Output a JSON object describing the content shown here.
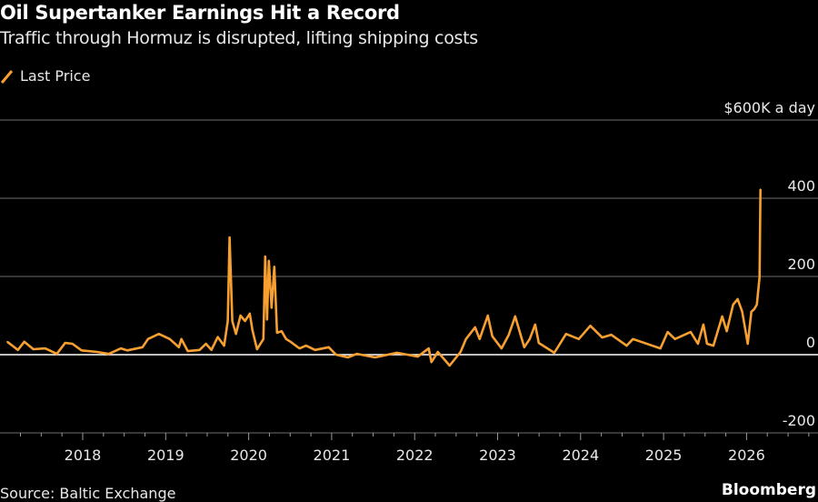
{
  "header": {
    "title": "Oil Supertanker Earnings Hit a Record",
    "subtitle": "Traffic through Hormuz is disrupted, lifting shipping costs"
  },
  "legend": {
    "label": "Last Price",
    "color": "#f7a031"
  },
  "footer": {
    "source": "Source: Baltic Exchange",
    "brand": "Bloomberg"
  },
  "chart_data": {
    "type": "line",
    "title": "Oil Supertanker Earnings Hit a Record",
    "ylabel": "$600K a day",
    "ylim": [
      -200,
      600
    ],
    "yticks": [
      {
        "value": 600,
        "label": "$600K a day"
      },
      {
        "value": 400,
        "label": "400"
      },
      {
        "value": 200,
        "label": "200"
      },
      {
        "value": 0,
        "label": "0"
      },
      {
        "value": -200,
        "label": "-200"
      }
    ],
    "xlim": [
      "2017-02-01",
      "2026-12-31"
    ],
    "xticks": [
      "2018",
      "2019",
      "2020",
      "2021",
      "2022",
      "2023",
      "2024",
      "2025",
      "2026"
    ],
    "grid": true,
    "legend_position": "top-left",
    "series": [
      {
        "name": "Last Price",
        "color": "#f7a031",
        "points": [
          [
            "2017-02-03",
            33
          ],
          [
            "2017-03-22",
            12
          ],
          [
            "2017-04-19",
            33
          ],
          [
            "2017-05-29",
            14
          ],
          [
            "2017-07-20",
            16
          ],
          [
            "2017-09-09",
            2
          ],
          [
            "2017-10-16",
            30
          ],
          [
            "2017-11-17",
            28
          ],
          [
            "2017-12-27",
            11
          ],
          [
            "2018-03-05",
            7
          ],
          [
            "2018-04-26",
            2
          ],
          [
            "2018-06-18",
            16
          ],
          [
            "2018-07-16",
            11
          ],
          [
            "2018-09-21",
            19
          ],
          [
            "2018-10-15",
            40
          ],
          [
            "2018-12-02",
            53
          ],
          [
            "2019-01-19",
            40
          ],
          [
            "2019-02-28",
            19
          ],
          [
            "2019-03-11",
            40
          ],
          [
            "2019-04-08",
            9
          ],
          [
            "2019-05-30",
            12
          ],
          [
            "2019-06-27",
            28
          ],
          [
            "2019-07-21",
            12
          ],
          [
            "2019-08-18",
            45
          ],
          [
            "2019-09-15",
            23
          ],
          [
            "2019-10-01",
            86
          ],
          [
            "2019-10-09",
            300
          ],
          [
            "2019-10-21",
            86
          ],
          [
            "2019-11-06",
            53
          ],
          [
            "2019-11-26",
            100
          ],
          [
            "2019-12-16",
            86
          ],
          [
            "2020-01-06",
            105
          ],
          [
            "2020-01-18",
            62
          ],
          [
            "2020-02-07",
            14
          ],
          [
            "2020-03-06",
            40
          ],
          [
            "2020-03-14",
            251
          ],
          [
            "2020-03-22",
            90
          ],
          [
            "2020-03-30",
            240
          ],
          [
            "2020-04-11",
            120
          ],
          [
            "2020-04-23",
            225
          ],
          [
            "2020-05-05",
            56
          ],
          [
            "2020-05-25",
            60
          ],
          [
            "2020-06-14",
            40
          ],
          [
            "2020-07-04",
            33
          ],
          [
            "2020-08-05",
            19
          ],
          [
            "2020-08-13",
            16
          ],
          [
            "2020-09-10",
            23
          ],
          [
            "2020-10-20",
            12
          ],
          [
            "2020-12-19",
            19
          ],
          [
            "2021-01-20",
            0
          ],
          [
            "2021-03-13",
            -7
          ],
          [
            "2021-04-22",
            2
          ],
          [
            "2021-07-11",
            -7
          ],
          [
            "2021-10-15",
            5
          ],
          [
            "2022-01-15",
            -5
          ],
          [
            "2022-03-04",
            16
          ],
          [
            "2022-03-16",
            -19
          ],
          [
            "2022-04-13",
            7
          ],
          [
            "2022-06-04",
            -28
          ],
          [
            "2022-07-22",
            7
          ],
          [
            "2022-08-15",
            40
          ],
          [
            "2022-09-24",
            70
          ],
          [
            "2022-10-14",
            40
          ],
          [
            "2022-11-19",
            100
          ],
          [
            "2022-12-09",
            47
          ],
          [
            "2023-01-18",
            16
          ],
          [
            "2023-02-19",
            51
          ],
          [
            "2023-03-19",
            98
          ],
          [
            "2023-04-28",
            19
          ],
          [
            "2023-05-22",
            40
          ],
          [
            "2023-06-15",
            77
          ],
          [
            "2023-07-01",
            30
          ],
          [
            "2023-09-07",
            5
          ],
          [
            "2023-09-27",
            23
          ],
          [
            "2023-10-29",
            53
          ],
          [
            "2023-12-24",
            40
          ],
          [
            "2024-02-13",
            74
          ],
          [
            "2024-04-05",
            44
          ],
          [
            "2024-05-15",
            51
          ],
          [
            "2024-07-22",
            23
          ],
          [
            "2024-08-19",
            40
          ],
          [
            "2024-12-18",
            16
          ],
          [
            "2025-01-19",
            58
          ],
          [
            "2025-02-20",
            40
          ],
          [
            "2025-04-30",
            58
          ],
          [
            "2025-06-01",
            28
          ],
          [
            "2025-06-25",
            77
          ],
          [
            "2025-07-11",
            28
          ],
          [
            "2025-08-08",
            23
          ],
          [
            "2025-09-16",
            98
          ],
          [
            "2025-10-06",
            60
          ],
          [
            "2025-11-03",
            128
          ],
          [
            "2025-11-23",
            142
          ],
          [
            "2025-12-13",
            110
          ],
          [
            "2026-01-06",
            28
          ],
          [
            "2026-01-22",
            110
          ],
          [
            "2026-02-03",
            116
          ],
          [
            "2026-02-15",
            128
          ],
          [
            "2026-02-27",
            198
          ],
          [
            "2026-03-03",
            423
          ]
        ]
      }
    ]
  }
}
